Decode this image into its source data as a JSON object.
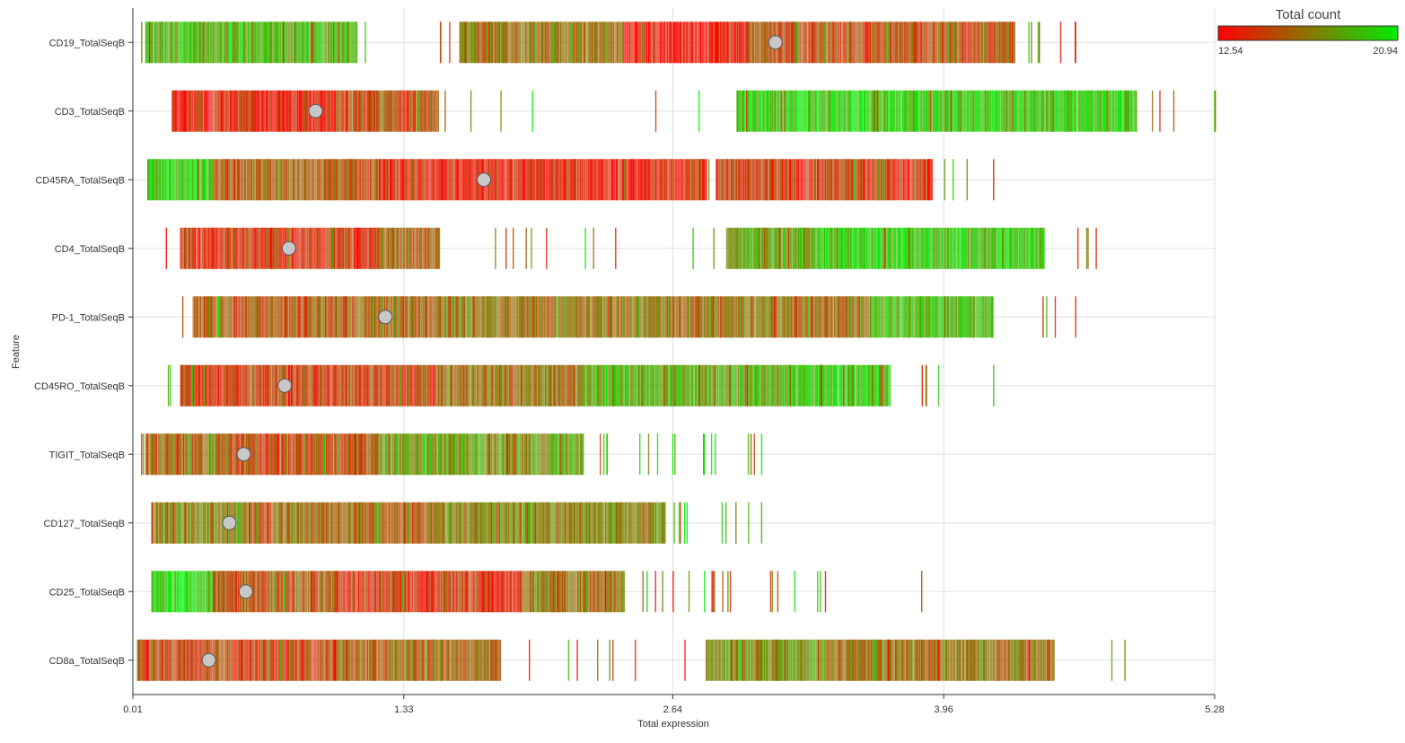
{
  "chart_data": {
    "type": "scatter",
    "subtype": "barcode strip plot with mean markers",
    "xlabel": "Total expression",
    "ylabel": "Feature",
    "x_ticks": [
      "0.01",
      "1.33",
      "2.64",
      "3.96",
      "5.28"
    ],
    "xlim": [
      0.01,
      5.28
    ],
    "grid": true,
    "legend": {
      "title": "Total count",
      "min_label": "12.54",
      "max_label": "20.94",
      "min": 12.54,
      "max": 20.94,
      "color_low": "#ff0000",
      "color_high": "#00ee00",
      "placement": "top-right"
    },
    "marker_color": "#c8c8c8",
    "features": [
      {
        "name": "CD19_TotalSeqB",
        "mean": 3.14,
        "min": 0.05,
        "max": 4.6,
        "segments": [
          [
            0.07,
            1.1,
            0.75
          ],
          [
            1.6,
            2.4,
            0.45
          ],
          [
            2.4,
            3.0,
            0.05
          ],
          [
            3.0,
            4.3,
            0.3
          ]
        ]
      },
      {
        "name": "CD3_TotalSeqB",
        "mean": 0.9,
        "min": 0.2,
        "max": 5.28,
        "segments": [
          [
            0.2,
            1.0,
            0.12
          ],
          [
            1.0,
            1.5,
            0.3
          ],
          [
            2.95,
            4.9,
            0.85
          ]
        ]
      },
      {
        "name": "CD45RA_TotalSeqB",
        "mean": 1.72,
        "min": 0.08,
        "max": 4.2,
        "segments": [
          [
            0.08,
            0.4,
            0.9
          ],
          [
            0.4,
            1.2,
            0.35
          ],
          [
            1.2,
            2.8,
            0.12
          ],
          [
            2.85,
            3.9,
            0.2
          ]
        ]
      },
      {
        "name": "CD4_TotalSeqB",
        "mean": 0.77,
        "min": 0.17,
        "max": 4.7,
        "segments": [
          [
            0.24,
            1.2,
            0.2
          ],
          [
            1.2,
            1.5,
            0.35
          ],
          [
            2.9,
            3.35,
            0.65
          ],
          [
            3.35,
            4.45,
            0.85
          ]
        ]
      },
      {
        "name": "PD-1_TotalSeqB",
        "mean": 1.24,
        "min": 0.25,
        "max": 4.6,
        "segments": [
          [
            0.3,
            1.5,
            0.35
          ],
          [
            1.5,
            3.6,
            0.45
          ],
          [
            3.6,
            4.2,
            0.75
          ]
        ]
      },
      {
        "name": "CD45RO_TotalSeqB",
        "mean": 0.75,
        "min": 0.18,
        "max": 4.2,
        "segments": [
          [
            0.24,
            1.5,
            0.25
          ],
          [
            1.5,
            2.2,
            0.45
          ],
          [
            2.2,
            3.2,
            0.7
          ],
          [
            3.2,
            3.7,
            0.85
          ]
        ]
      },
      {
        "name": "TIGIT_TotalSeqB",
        "mean": 0.55,
        "min": 0.05,
        "max": 3.07,
        "segments": [
          [
            0.07,
            0.5,
            0.4
          ],
          [
            0.5,
            1.2,
            0.3
          ],
          [
            1.2,
            2.2,
            0.65
          ]
        ]
      },
      {
        "name": "CD127_TotalSeqB",
        "mean": 0.48,
        "min": 0.1,
        "max": 3.07,
        "segments": [
          [
            0.1,
            0.55,
            0.55
          ],
          [
            0.55,
            1.5,
            0.4
          ],
          [
            1.5,
            2.6,
            0.55
          ]
        ]
      },
      {
        "name": "CD25_TotalSeqB",
        "mean": 0.56,
        "min": 0.1,
        "max": 3.85,
        "segments": [
          [
            0.1,
            0.4,
            0.9
          ],
          [
            0.4,
            1.0,
            0.35
          ],
          [
            1.0,
            1.9,
            0.2
          ],
          [
            1.9,
            2.4,
            0.45
          ]
        ]
      },
      {
        "name": "CD8a_TotalSeqB",
        "mean": 0.38,
        "min": 0.03,
        "max": 4.84,
        "segments": [
          [
            0.03,
            1.0,
            0.25
          ],
          [
            1.0,
            1.8,
            0.4
          ],
          [
            2.8,
            3.4,
            0.55
          ],
          [
            3.4,
            4.5,
            0.45
          ]
        ]
      }
    ]
  }
}
